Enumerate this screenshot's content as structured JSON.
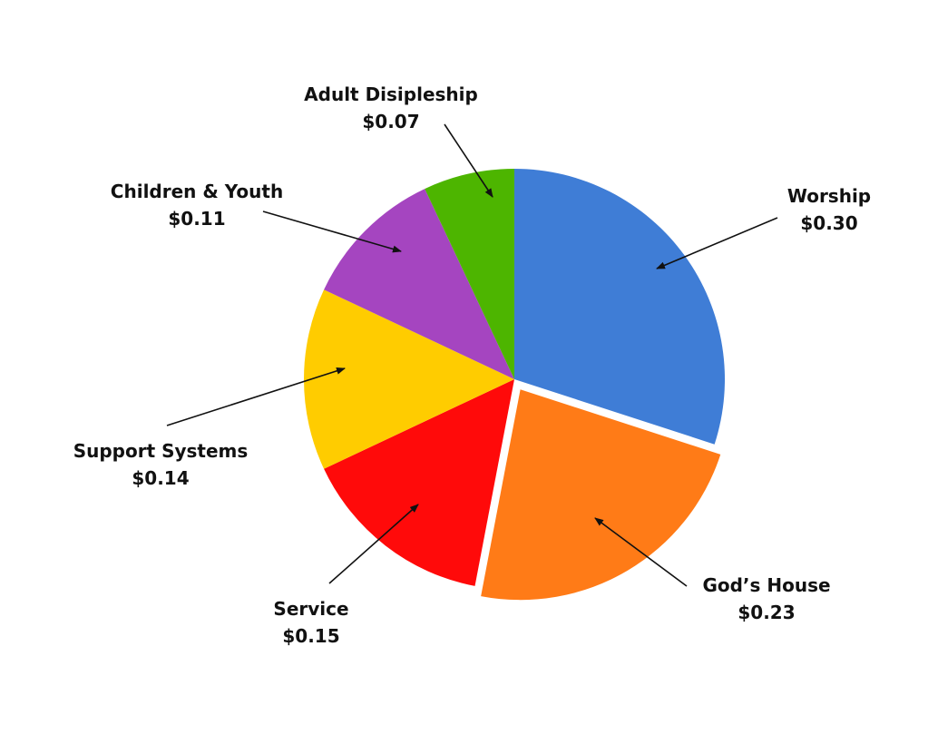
{
  "chart_data": {
    "type": "pie",
    "title": "",
    "start": "top",
    "direction": "clockwise",
    "slices": [
      {
        "label": "Worship",
        "value": 0.3,
        "value_label": "$0.30",
        "color": "#3F7DD6",
        "exploded": false
      },
      {
        "label": "God’s House",
        "value": 0.23,
        "value_label": "$0.23",
        "color": "#FF7B17",
        "exploded": true
      },
      {
        "label": "Service",
        "value": 0.15,
        "value_label": "$0.15",
        "color": "#FF0A0A",
        "exploded": false
      },
      {
        "label": "Support Systems",
        "value": 0.14,
        "value_label": "$0.14",
        "color": "#FFCC00",
        "exploded": false
      },
      {
        "label": "Children & Youth",
        "value": 0.11,
        "value_label": "$0.11",
        "color": "#A545C0",
        "exploded": false
      },
      {
        "label": "Adult Disipleship",
        "value": 0.07,
        "value_label": "$0.07",
        "color": "#4DB500",
        "exploded": false
      }
    ],
    "legend": "callout labels with arrows"
  }
}
